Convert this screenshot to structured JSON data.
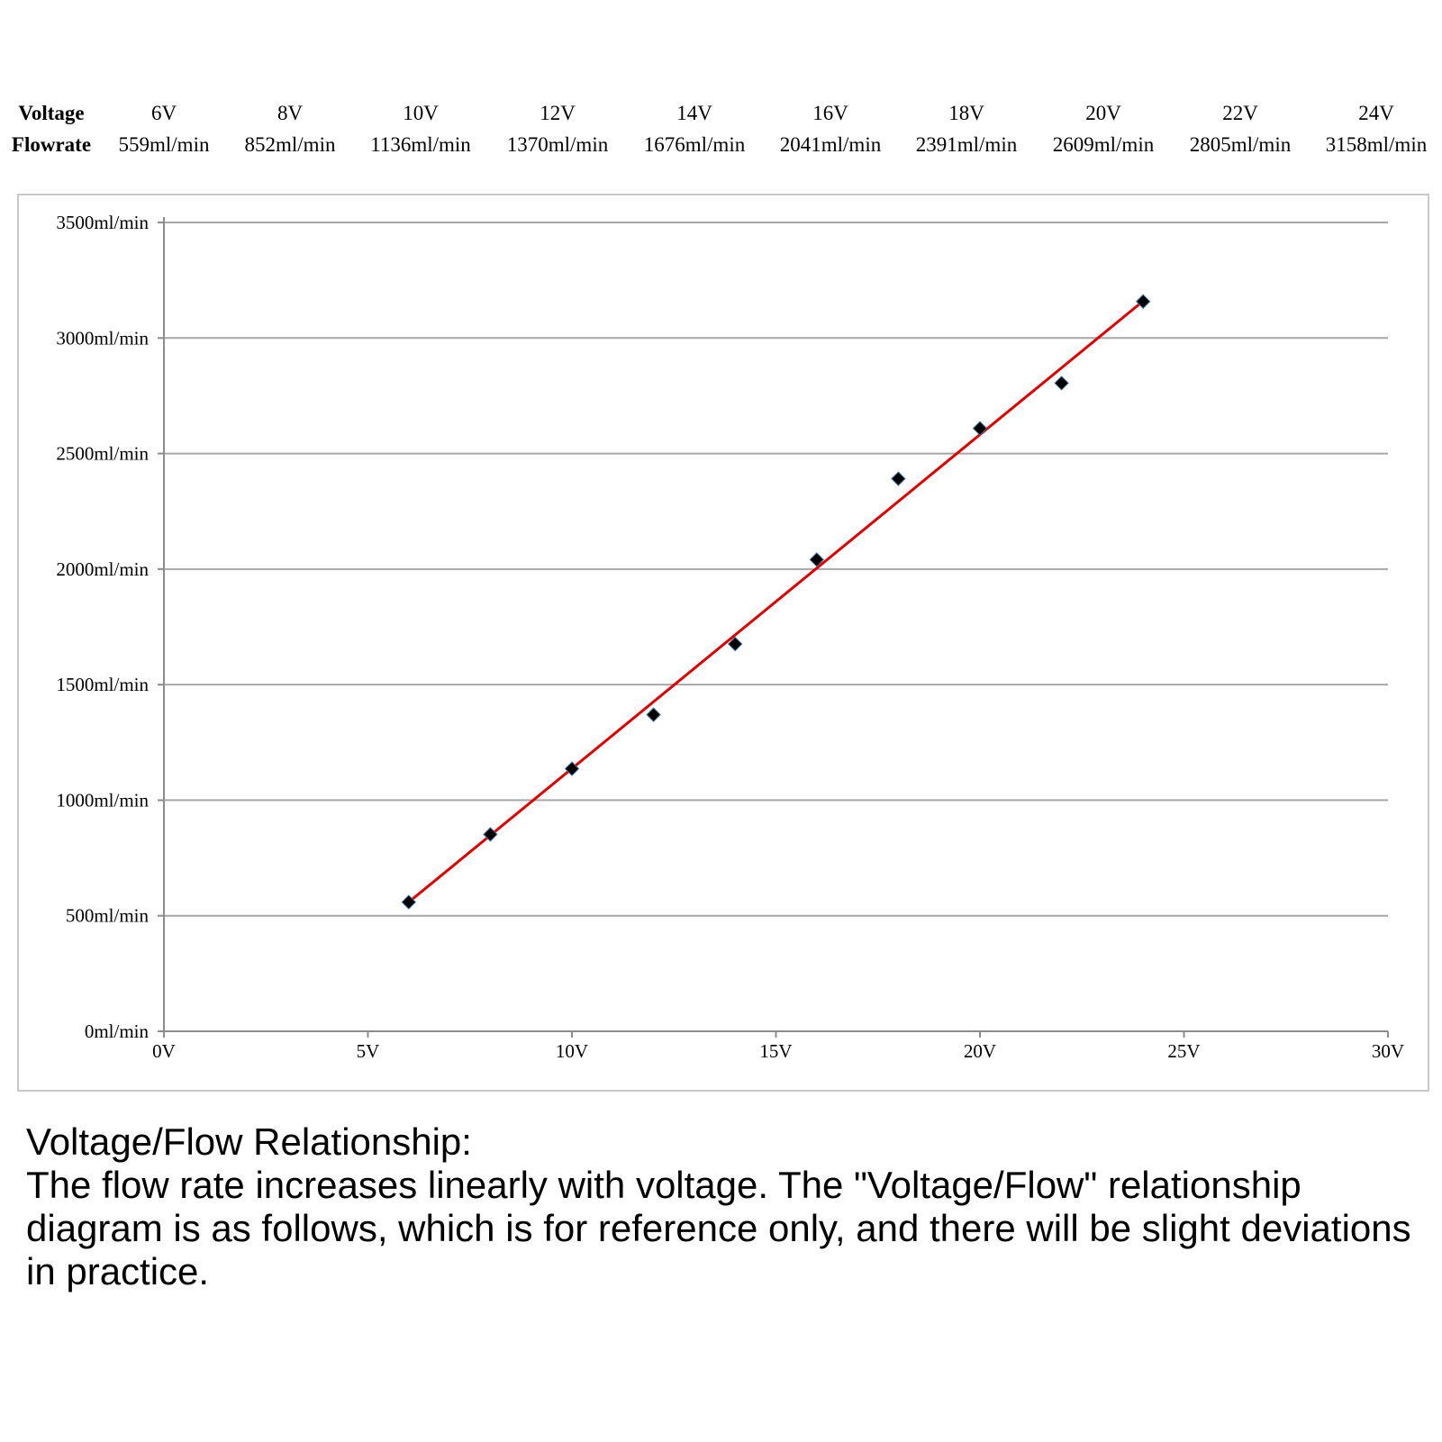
{
  "table": {
    "voltage_header": "Voltage",
    "flowrate_header": "Flowrate",
    "voltages": [
      "6V",
      "8V",
      "10V",
      "12V",
      "14V",
      "16V",
      "18V",
      "20V",
      "22V",
      "24V"
    ],
    "flowrates": [
      "559ml/min",
      "852ml/min",
      "1136ml/min",
      "1370ml/min",
      "1676ml/min",
      "2041ml/min",
      "2391ml/min",
      "2609ml/min",
      "2805ml/min",
      "3158ml/min"
    ]
  },
  "chart_data": {
    "type": "scatter",
    "title": "",
    "xlabel": "",
    "ylabel": "",
    "xlim": [
      0,
      30
    ],
    "ylim": [
      0,
      3500
    ],
    "x_ticks": [
      0,
      5,
      10,
      15,
      20,
      25,
      30
    ],
    "x_tick_labels": [
      "0V",
      "5V",
      "10V",
      "15V",
      "20V",
      "25V",
      "30V"
    ],
    "y_ticks": [
      0,
      500,
      1000,
      1500,
      2000,
      2500,
      3000,
      3500
    ],
    "y_tick_labels": [
      "0ml/min",
      "500ml/min",
      "1000ml/min",
      "1500ml/min",
      "2000ml/min",
      "2500ml/min",
      "3000ml/min",
      "3500ml/min"
    ],
    "grid": "horizontal",
    "series": [
      {
        "x": [
          6,
          8,
          10,
          12,
          14,
          16,
          18,
          20,
          22,
          24
        ],
        "y": [
          559,
          852,
          1136,
          1370,
          1676,
          2041,
          2391,
          2609,
          2805,
          3158
        ],
        "marker": "diamond",
        "color": "#000000"
      }
    ],
    "trendline": {
      "type": "linear",
      "x": [
        6,
        24
      ],
      "y": [
        559,
        3160
      ],
      "color": "#e00000"
    }
  },
  "caption": {
    "title": "Voltage/Flow Relationship:",
    "body": "The flow rate increases linearly with voltage. The \"Voltage/Flow\" relationship diagram is as follows, which is for reference only, and there will be slight deviations in practice."
  }
}
